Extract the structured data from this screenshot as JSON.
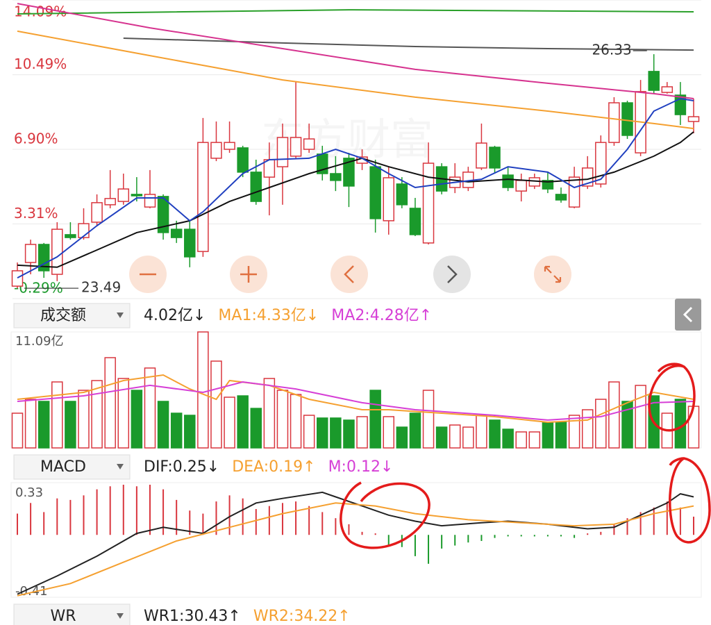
{
  "price_chart": {
    "type": "candlestick",
    "ylim": [
      -0.29,
      14.09
    ],
    "yticks": [
      {
        "value": 14.09,
        "label": "14.09%"
      },
      {
        "value": 10.49,
        "label": "10.49%"
      },
      {
        "value": 6.9,
        "label": "6.90%"
      },
      {
        "value": 3.31,
        "label": "3.31%"
      },
      {
        "value": -0.29,
        "label": "-0.29%"
      }
    ],
    "grid": true,
    "up_color": "#d9363e",
    "down_color": "#1a9a2b",
    "watermark": "东方财富",
    "annotations": {
      "high": "26.33",
      "low": "23.49"
    },
    "open": [
      0.31,
      1.45,
      2.32,
      0.88,
      2.79,
      2.65,
      3.39,
      4.23,
      4.39,
      4.73,
      4.12,
      4.63,
      3.05,
      3.05,
      1.98,
      6.47,
      6.9,
      6.97,
      5.8,
      5.56,
      6.06,
      6.57,
      6.9,
      6.67,
      5.73,
      6.47,
      6.23,
      6.06,
      3.46,
      5.23,
      4.06,
      2.39,
      6.06,
      5.06,
      5.06,
      6.0,
      7.0,
      5.66,
      4.89,
      5.13,
      5.4,
      4.73,
      4.12,
      5.13,
      5.23,
      7.23,
      9.14,
      6.73,
      10.65,
      9.64,
      9.51,
      8.24
    ],
    "high": [
      1.45,
      2.55,
      2.39,
      3.39,
      3.39,
      4.06,
      4.73,
      5.9,
      5.73,
      5.56,
      5.9,
      4.73,
      3.46,
      3.46,
      8.41,
      8.24,
      8.24,
      7.07,
      6.4,
      7.23,
      8.14,
      10.14,
      8.14,
      7.07,
      6.57,
      6.73,
      6.9,
      6.4,
      6.06,
      5.56,
      4.56,
      7.23,
      6.23,
      6.23,
      6.06,
      8.14,
      7.07,
      6.06,
      5.73,
      5.73,
      5.8,
      5.06,
      6.06,
      6.57,
      7.57,
      9.41,
      9.24,
      10.24,
      11.48,
      10.14,
      10.14,
      9.34
    ],
    "low": [
      0.21,
      0.88,
      0.71,
      0.55,
      2.55,
      2.55,
      3.22,
      4.06,
      4.23,
      4.39,
      4.06,
      2.55,
      2.39,
      1.22,
      1.72,
      6.33,
      6.73,
      5.56,
      4.23,
      3.72,
      4.23,
      6.47,
      6.73,
      5.4,
      4.89,
      4.12,
      5.9,
      2.89,
      2.79,
      4.06,
      2.72,
      2.32,
      4.73,
      4.79,
      4.89,
      5.9,
      5.73,
      4.89,
      4.39,
      4.99,
      4.79,
      4.33,
      4.06,
      4.99,
      5.06,
      7.07,
      7.4,
      6.57,
      9.58,
      9.58,
      8.07,
      7.67
    ],
    "close": [
      1.05,
      2.32,
      1.05,
      3.05,
      2.65,
      3.32,
      4.33,
      4.53,
      4.99,
      4.66,
      4.73,
      2.89,
      2.65,
      1.72,
      7.23,
      7.23,
      7.23,
      5.8,
      4.39,
      6.4,
      7.47,
      7.47,
      7.4,
      5.73,
      5.4,
      5.13,
      6.53,
      3.56,
      5.53,
      4.23,
      2.79,
      6.23,
      4.89,
      5.56,
      5.8,
      7.2,
      6.0,
      5.06,
      5.4,
      5.53,
      4.99,
      4.46,
      5.56,
      6.0,
      7.23,
      9.14,
      7.57,
      9.68,
      9.74,
      9.91,
      8.57,
      8.47
    ],
    "ma_lines": [
      {
        "color": "#2aa02a",
        "x": [
          0,
          25,
          51
        ],
        "values": [
          13.42,
          13.62,
          13.52
        ]
      },
      {
        "color": "#555555",
        "x": [
          8,
          20,
          30,
          40,
          51
        ],
        "values": [
          12.25,
          12.02,
          11.85,
          11.75,
          11.68
        ]
      },
      {
        "color": "#d6338f",
        "x": [
          0,
          10,
          20,
          30,
          40,
          48,
          51
        ],
        "values": [
          13.92,
          12.75,
          11.75,
          10.75,
          10.08,
          9.58,
          9.34
        ]
      },
      {
        "color": "#f5a030",
        "x": [
          0,
          10,
          20,
          30,
          40,
          48,
          51
        ],
        "values": [
          12.59,
          11.41,
          10.24,
          9.41,
          8.74,
          8.14,
          7.9
        ]
      },
      {
        "color": "#111111",
        "x": [
          0,
          3,
          6,
          9,
          13,
          16,
          19,
          22,
          26,
          28,
          31,
          34,
          37,
          40,
          43,
          45,
          48,
          50,
          51
        ],
        "values": [
          1.32,
          1.22,
          2.05,
          2.89,
          3.46,
          4.39,
          5.06,
          5.73,
          6.47,
          6.06,
          5.56,
          5.33,
          5.46,
          5.33,
          5.46,
          5.8,
          6.57,
          7.23,
          7.74
        ]
      },
      {
        "color": "#2040c0",
        "x": [
          0,
          3,
          6,
          9,
          11,
          13,
          14,
          17,
          19,
          22,
          24,
          26,
          28,
          30,
          32,
          35,
          37,
          40,
          42,
          44,
          46,
          48,
          50,
          51
        ],
        "values": [
          0.71,
          1.72,
          3.22,
          4.56,
          4.56,
          3.46,
          3.89,
          5.73,
          6.4,
          6.47,
          6.9,
          6.47,
          5.73,
          5.06,
          5.23,
          5.46,
          6.06,
          5.8,
          5.06,
          5.46,
          6.9,
          8.74,
          9.34,
          9.24
        ]
      }
    ]
  },
  "volume_bar": {
    "selector": "成交额",
    "readouts": [
      {
        "text": "4.02亿↓",
        "color": "#222222"
      },
      {
        "text": "MA1:4.33亿↓",
        "color": "#f5a030"
      },
      {
        "text": "MA2:4.28亿↑",
        "color": "#d63fd6"
      }
    ]
  },
  "volume_chart": {
    "type": "bar",
    "ylim": [
      0,
      11.09
    ],
    "yticks": [
      {
        "value": 11.09,
        "label": "11.09亿"
      }
    ],
    "values": [
      3.32,
      4.65,
      4.45,
      6.31,
      4.45,
      5.51,
      6.44,
      8.63,
      6.64,
      5.51,
      7.64,
      4.45,
      3.32,
      3.12,
      11.09,
      8.3,
      4.85,
      4.98,
      3.78,
      6.64,
      5.51,
      5.11,
      3.12,
      2.86,
      2.86,
      2.66,
      2.99,
      5.51,
      2.99,
      1.99,
      3.32,
      5.51,
      1.99,
      2.19,
      1.99,
      3.12,
      2.66,
      1.79,
      1.53,
      1.53,
      2.46,
      2.46,
      3.12,
      3.65,
      4.65,
      6.31,
      4.45,
      5.98,
      4.98,
      3.32,
      4.65,
      3.98
    ],
    "ma_lines": [
      {
        "color": "#f5a030",
        "x": [
          0,
          5,
          8,
          11,
          13,
          15,
          16,
          19,
          22,
          26,
          28,
          32,
          36,
          40,
          43,
          46,
          48,
          51
        ],
        "values": [
          4.65,
          5.31,
          6.44,
          6.97,
          5.64,
          4.65,
          6.44,
          5.98,
          4.65,
          3.65,
          3.65,
          3.32,
          2.99,
          2.46,
          2.66,
          4.32,
          5.31,
          4.65
        ]
      },
      {
        "color": "#d63fd6",
        "x": [
          0,
          5,
          10,
          14,
          17,
          21,
          26,
          30,
          36,
          40,
          44,
          48,
          51
        ],
        "values": [
          4.45,
          4.98,
          5.98,
          5.31,
          6.31,
          5.64,
          4.32,
          3.65,
          3.12,
          2.66,
          2.99,
          4.32,
          4.45
        ]
      }
    ]
  },
  "macd_bar": {
    "selector": "MACD",
    "readouts": [
      {
        "text": "DIF:0.25↓",
        "color": "#222222"
      },
      {
        "text": "DEA:0.19↑",
        "color": "#f5a030"
      },
      {
        "text": "M:0.12↓",
        "color": "#d63fd6"
      }
    ]
  },
  "macd_chart": {
    "type": "macd",
    "ylim": [
      -0.41,
      0.33
    ],
    "yticks": [
      0.33,
      -0.41
    ],
    "m": [
      0.14,
      0.21,
      0.15,
      0.24,
      0.23,
      0.26,
      0.3,
      0.32,
      0.33,
      0.32,
      0.33,
      0.3,
      0.23,
      0.16,
      0.14,
      0.22,
      0.26,
      0.24,
      0.17,
      0.19,
      0.21,
      0.22,
      0.19,
      0.15,
      0.11,
      0.07,
      0.02,
      0.01,
      -0.07,
      -0.08,
      -0.14,
      -0.19,
      -0.09,
      -0.07,
      -0.05,
      -0.04,
      -0.02,
      -0.01,
      -0.01,
      -0.01,
      -0.01,
      -0.01,
      -0.02,
      0.01,
      0.02,
      0.07,
      0.11,
      0.15,
      0.18,
      0.22,
      0.18,
      0.12
    ],
    "dif": {
      "color": "#222222",
      "x": [
        0,
        3,
        6,
        9,
        11,
        14,
        16,
        18,
        20,
        23,
        24,
        26,
        28,
        30,
        32,
        35,
        37,
        40,
        43,
        45,
        47,
        49,
        50,
        51
      ],
      "values": [
        -0.39,
        -0.27,
        -0.14,
        0.01,
        0.05,
        0.01,
        0.12,
        0.21,
        0.24,
        0.28,
        0.25,
        0.19,
        0.13,
        0.09,
        0.06,
        0.08,
        0.09,
        0.07,
        0.04,
        0.05,
        0.13,
        0.21,
        0.27,
        0.25
      ]
    },
    "dea": {
      "color": "#f5a030",
      "x": [
        0,
        4,
        8,
        12,
        16,
        20,
        24,
        27,
        30,
        34,
        38,
        42,
        45,
        48,
        51
      ],
      "values": [
        -0.4,
        -0.32,
        -0.18,
        -0.04,
        0.05,
        0.14,
        0.21,
        0.19,
        0.14,
        0.1,
        0.08,
        0.06,
        0.07,
        0.14,
        0.19
      ]
    }
  },
  "wr_bar": {
    "selector": "WR",
    "readouts": [
      {
        "text": "WR1:30.43↑",
        "color": "#222222"
      },
      {
        "text": "WR2:34.22↑",
        "color": "#f5a030"
      }
    ]
  }
}
